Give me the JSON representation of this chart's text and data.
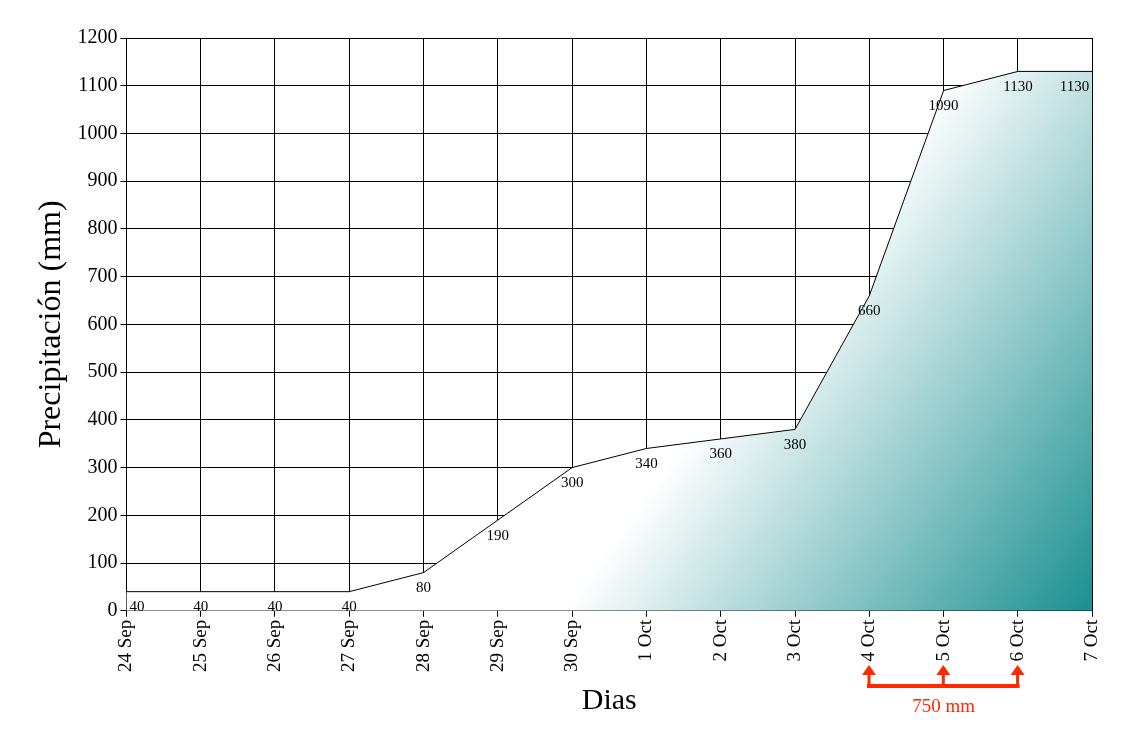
{
  "chart_data": {
    "type": "area",
    "xlabel": "Dias",
    "ylabel": "Precipitación (mm)",
    "categories": [
      "24 Sep",
      "25 Sep",
      "26 Sep",
      "27 Sep",
      "28 Sep",
      "29 Sep",
      "30 Sep",
      "1 Oct",
      "2 Oct",
      "3 Oct",
      "4 Oct",
      "5 Oct",
      "6 Oct",
      "7 Oct"
    ],
    "series": [
      {
        "color": "#1a9090",
        "values": [
          40,
          40,
          40,
          40,
          80,
          190,
          300,
          340,
          360,
          380,
          660,
          1090,
          1130,
          1130
        ]
      }
    ],
    "ylim": [
      0,
      1200
    ],
    "yticks": [
      0,
      100,
      200,
      300,
      400,
      500,
      600,
      700,
      800,
      900,
      1000,
      1100,
      1200
    ],
    "grid": true,
    "legend": false,
    "marker": "none",
    "line_style": "solid",
    "data_labels": true,
    "annotations": [
      "750 mm"
    ]
  }
}
